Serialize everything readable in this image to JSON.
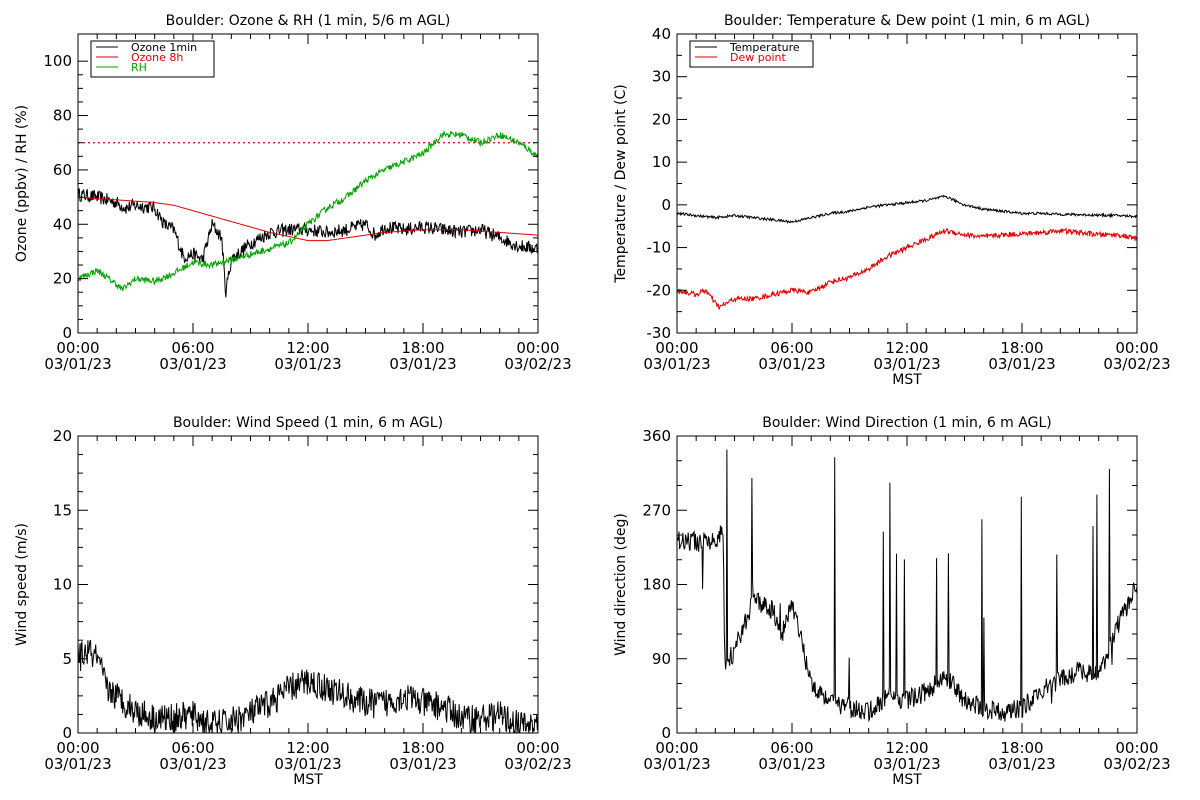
{
  "charts": [
    {
      "id": "ozone",
      "title": "Boulder: Ozone & RH (1 min, 5/6 m AGL)",
      "ylabel": "Ozone (ppbv) / RH (%)",
      "xlabel": "",
      "yticks": [
        "0",
        "20",
        "40",
        "60",
        "80",
        "100"
      ],
      "xticks": [
        {
          "time": "00:00",
          "date": "03/01/23"
        },
        {
          "time": "06:00",
          "date": "03/01/23"
        },
        {
          "time": "12:00",
          "date": "03/01/23"
        },
        {
          "time": "18:00",
          "date": "03/01/23"
        },
        {
          "time": "00:00",
          "date": "03/02/23"
        }
      ],
      "legend": [
        "Ozone 1min",
        "Ozone 8h",
        "RH"
      ]
    },
    {
      "id": "temp",
      "title": "Boulder: Temperature & Dew point (1 min, 6 m AGL)",
      "ylabel": "Temperature / Dew point (C)",
      "xlabel": "MST",
      "yticks": [
        "-30",
        "-20",
        "-10",
        "0",
        "10",
        "20",
        "30",
        "40"
      ],
      "xticks": [
        {
          "time": "00:00",
          "date": "03/01/23"
        },
        {
          "time": "06:00",
          "date": "03/01/23"
        },
        {
          "time": "12:00",
          "date": "03/01/23"
        },
        {
          "time": "18:00",
          "date": "03/01/23"
        },
        {
          "time": "00:00",
          "date": "03/02/23"
        }
      ],
      "legend": [
        "Temperature",
        "Dew point"
      ]
    },
    {
      "id": "wspd",
      "title": "Boulder: Wind Speed (1 min, 6 m AGL)",
      "ylabel": "Wind speed (m/s)",
      "xlabel": "MST",
      "yticks": [
        "0",
        "5",
        "10",
        "15",
        "20"
      ],
      "xticks": [
        {
          "time": "00:00",
          "date": "03/01/23"
        },
        {
          "time": "06:00",
          "date": "03/01/23"
        },
        {
          "time": "12:00",
          "date": "03/01/23"
        },
        {
          "time": "18:00",
          "date": "03/01/23"
        },
        {
          "time": "00:00",
          "date": "03/02/23"
        }
      ],
      "legend": []
    },
    {
      "id": "wdir",
      "title": "Boulder: Wind Direction (1 min, 6 m AGL)",
      "ylabel": "Wind direction (deg)",
      "xlabel": "MST",
      "yticks": [
        "0",
        "90",
        "180",
        "270",
        "360"
      ],
      "xticks": [
        {
          "time": "00:00",
          "date": "03/01/23"
        },
        {
          "time": "06:00",
          "date": "03/01/23"
        },
        {
          "time": "12:00",
          "date": "03/01/23"
        },
        {
          "time": "18:00",
          "date": "03/01/23"
        },
        {
          "time": "00:00",
          "date": "03/02/23"
        }
      ],
      "legend": []
    }
  ],
  "colors": {
    "black": "#000000",
    "red": "#dd0000",
    "green": "#00a000"
  },
  "chart_data": [
    {
      "type": "line",
      "title": "Boulder: Ozone & RH (1 min, 5/6 m AGL)",
      "xlabel": "",
      "ylabel": "Ozone (ppbv) / RH (%)",
      "x_unit": "hours since 03/01/23 00:00 MST",
      "xlim": [
        0,
        24
      ],
      "ylim": [
        0,
        110
      ],
      "reference_lines": [
        {
          "y": 70,
          "style": "dotted",
          "color": "#dd0000"
        }
      ],
      "series": [
        {
          "name": "Ozone 1min",
          "color": "#000000",
          "noise": 2.5,
          "x": [
            0,
            1,
            2,
            2.5,
            3,
            4,
            4.5,
            5,
            5.5,
            6,
            6.5,
            7,
            7.5,
            7.7,
            8,
            9,
            10,
            11,
            12,
            13,
            14,
            15,
            15.5,
            16,
            17,
            18,
            19,
            20,
            21,
            22,
            23,
            24
          ],
          "y": [
            51,
            50,
            48,
            46,
            47,
            46,
            40,
            38,
            28,
            29,
            27,
            40,
            35,
            15,
            27,
            33,
            37,
            38,
            38,
            37,
            38,
            40,
            36,
            39,
            38,
            39,
            38,
            37,
            38,
            35,
            32,
            31
          ]
        },
        {
          "name": "Ozone 8h",
          "color": "#dd0000",
          "noise": 0,
          "x": [
            0,
            2,
            4,
            5,
            6,
            8,
            10,
            12,
            13,
            14,
            16,
            18,
            20,
            22,
            24
          ],
          "y": [
            50,
            49,
            48,
            47,
            45,
            41,
            37,
            34,
            34,
            35,
            37,
            38,
            38,
            37,
            36
          ]
        },
        {
          "name": "RH",
          "color": "#00a000",
          "noise": 1.2,
          "x": [
            0,
            1,
            2,
            2.3,
            3,
            4,
            5,
            6,
            7,
            8,
            9,
            10,
            11,
            12,
            13,
            14,
            15,
            16,
            17,
            18,
            19,
            20,
            21,
            22,
            23,
            24
          ],
          "y": [
            20,
            23,
            18,
            16,
            20,
            19,
            22,
            26,
            25,
            27,
            29,
            31,
            33,
            40,
            46,
            50,
            56,
            60,
            63,
            66,
            73,
            73,
            70,
            73,
            70,
            65
          ]
        }
      ]
    },
    {
      "type": "line",
      "title": "Boulder: Temperature & Dew point (1 min, 6 m AGL)",
      "xlabel": "MST",
      "ylabel": "Temperature / Dew point (C)",
      "x_unit": "hours since 03/01/23 00:00 MST",
      "xlim": [
        0,
        24
      ],
      "ylim": [
        -30,
        40
      ],
      "series": [
        {
          "name": "Temperature",
          "color": "#000000",
          "noise": 0.3,
          "x": [
            0,
            1,
            2,
            3,
            4,
            5,
            6,
            7,
            8,
            9,
            10,
            11,
            12,
            13,
            14,
            15,
            16,
            17,
            18,
            19,
            20,
            21,
            22,
            23,
            24
          ],
          "y": [
            -2,
            -2.5,
            -3,
            -2.5,
            -3,
            -3.5,
            -4,
            -3,
            -2,
            -1.5,
            -0.5,
            0,
            0.5,
            1,
            2,
            0,
            -1,
            -1.5,
            -2,
            -2,
            -2.2,
            -2.3,
            -2.4,
            -2.5,
            -2.7
          ]
        },
        {
          "name": "Dew point",
          "color": "#dd0000",
          "noise": 0.6,
          "x": [
            0,
            1,
            1.5,
            2,
            2.2,
            3,
            4,
            5,
            6,
            7,
            8,
            9,
            10,
            11,
            12,
            13,
            14,
            15,
            16,
            17,
            18,
            19,
            20,
            21,
            22,
            23,
            24
          ],
          "y": [
            -20,
            -21,
            -20,
            -23,
            -24,
            -22,
            -22,
            -21,
            -20,
            -20.5,
            -18,
            -17,
            -15,
            -12,
            -10,
            -8,
            -6,
            -7,
            -7.5,
            -7,
            -6.8,
            -6.5,
            -6,
            -6.5,
            -7,
            -7,
            -8
          ]
        }
      ]
    },
    {
      "type": "line",
      "title": "Boulder: Wind Speed (1 min, 6 m AGL)",
      "xlabel": "MST",
      "ylabel": "Wind speed (m/s)",
      "x_unit": "hours since 03/01/23 00:00 MST",
      "xlim": [
        0,
        24
      ],
      "ylim": [
        0,
        20
      ],
      "series": [
        {
          "name": "",
          "color": "#000000",
          "noise": 1.0,
          "x": [
            0,
            0.5,
            1,
            1.5,
            2,
            3,
            4,
            5,
            6,
            7,
            8,
            9,
            10,
            11,
            12,
            13,
            14,
            15,
            16,
            17,
            18,
            19,
            20,
            21,
            22,
            23,
            24
          ],
          "y": [
            5,
            5.5,
            5,
            3,
            2.5,
            1.5,
            1,
            1,
            1.2,
            0.5,
            0.8,
            1.3,
            2,
            3,
            3.5,
            3,
            2.5,
            2,
            2,
            2.5,
            2,
            1.8,
            1,
            1,
            1.2,
            0.5,
            0.6
          ]
        }
      ]
    },
    {
      "type": "line",
      "title": "Boulder: Wind Direction (1 min, 6 m AGL)",
      "xlabel": "MST",
      "ylabel": "Wind direction (deg)",
      "x_unit": "hours since 03/01/23 00:00 MST",
      "xlim": [
        0,
        24
      ],
      "ylim": [
        0,
        360
      ],
      "series": [
        {
          "name": "",
          "color": "#000000",
          "noise": 12,
          "x": [
            0,
            1,
            2,
            2.4,
            2.5,
            3,
            4,
            5,
            5.5,
            6,
            7,
            8,
            9,
            10,
            11,
            12,
            13,
            14,
            15,
            16,
            17,
            18,
            19,
            20,
            21,
            22,
            23,
            24
          ],
          "y": [
            235,
            232,
            230,
            245,
            80,
            100,
            160,
            150,
            120,
            160,
            60,
            40,
            30,
            25,
            45,
            40,
            50,
            70,
            40,
            30,
            25,
            30,
            50,
            65,
            75,
            70,
            130,
            180
          ]
        }
      ]
    }
  ]
}
